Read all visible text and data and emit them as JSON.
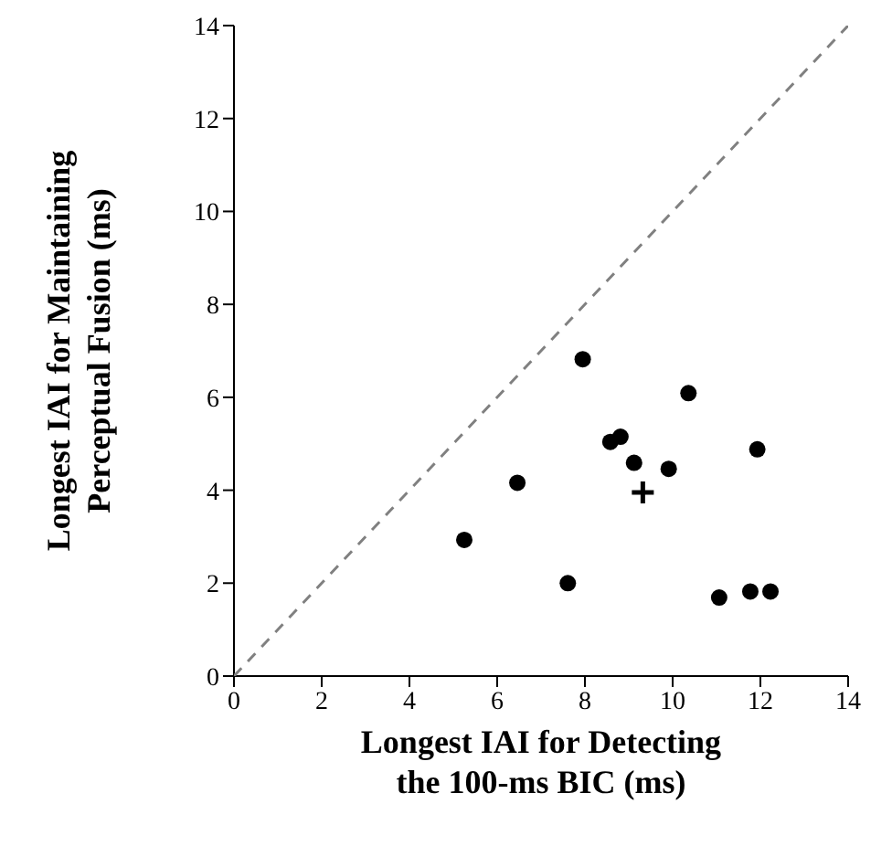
{
  "chart_data": {
    "type": "scatter",
    "xlabel": "Longest IAI for Detecting\nthe 100-ms BIC (ms)",
    "ylabel": "Longest IAI for Maintaining\nPerceptual Fusion (ms)",
    "xlim": [
      0,
      14
    ],
    "ylim": [
      0,
      14
    ],
    "xticks": [
      0,
      2,
      4,
      6,
      8,
      10,
      12,
      14
    ],
    "yticks": [
      0,
      2,
      4,
      6,
      8,
      10,
      12,
      14
    ],
    "grid": false,
    "series": [
      {
        "color": "#000000",
        "marker": "circle",
        "x": [
          5.25,
          6.46,
          7.61,
          7.95,
          8.58,
          8.81,
          9.12,
          9.91,
          10.36,
          11.06,
          11.77,
          12.23,
          11.93
        ],
        "values": [
          2.93,
          4.16,
          2.0,
          6.82,
          5.04,
          5.15,
          4.59,
          4.46,
          6.09,
          1.69,
          1.82,
          1.82,
          4.88
        ]
      },
      {
        "color": "#000000",
        "marker": "cross",
        "x": [
          9.32
        ],
        "values": [
          3.95
        ]
      },
      {
        "type": "line",
        "color": "#808080",
        "marker": "none",
        "line_style": "dashed",
        "x": [
          0,
          14
        ],
        "values": [
          0,
          14
        ]
      }
    ]
  }
}
